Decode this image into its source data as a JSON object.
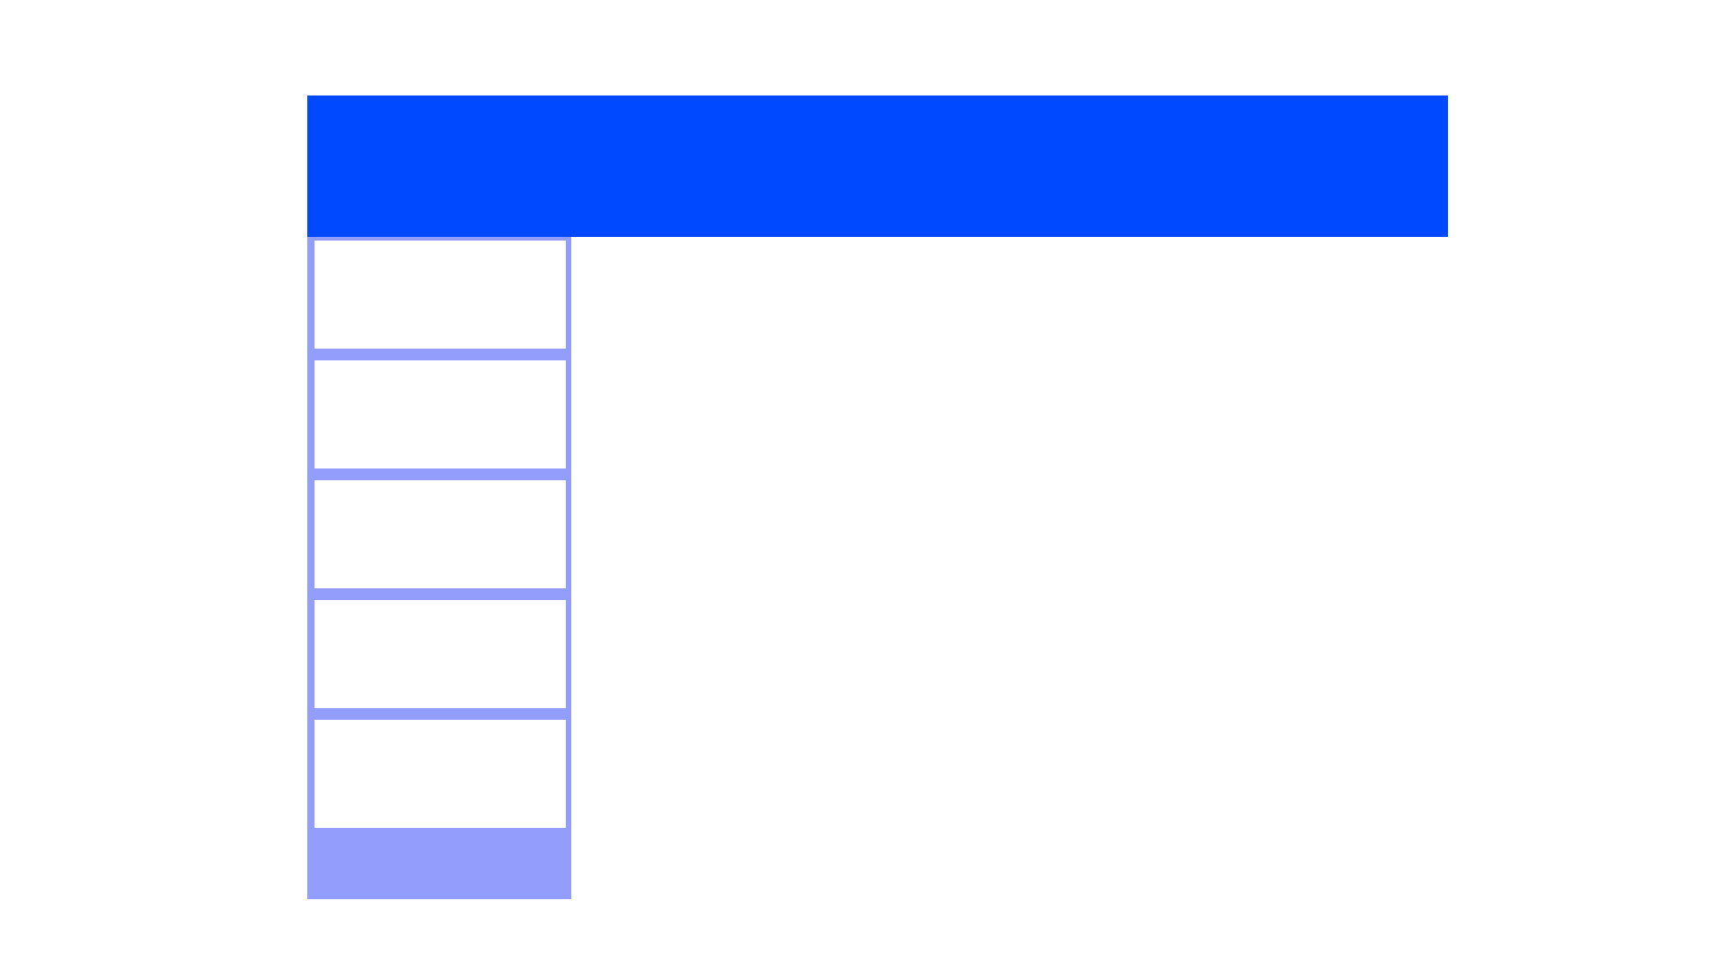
{
  "colors": {
    "header_background": "#0049ff",
    "sidebar_background": "#939dfb",
    "panel_background": "#ffffff",
    "page_background": "#ffffff"
  },
  "header": {
    "title": ""
  },
  "sidebar": {
    "items": [
      {
        "label": ""
      },
      {
        "label": ""
      },
      {
        "label": ""
      },
      {
        "label": ""
      },
      {
        "label": ""
      }
    ]
  }
}
